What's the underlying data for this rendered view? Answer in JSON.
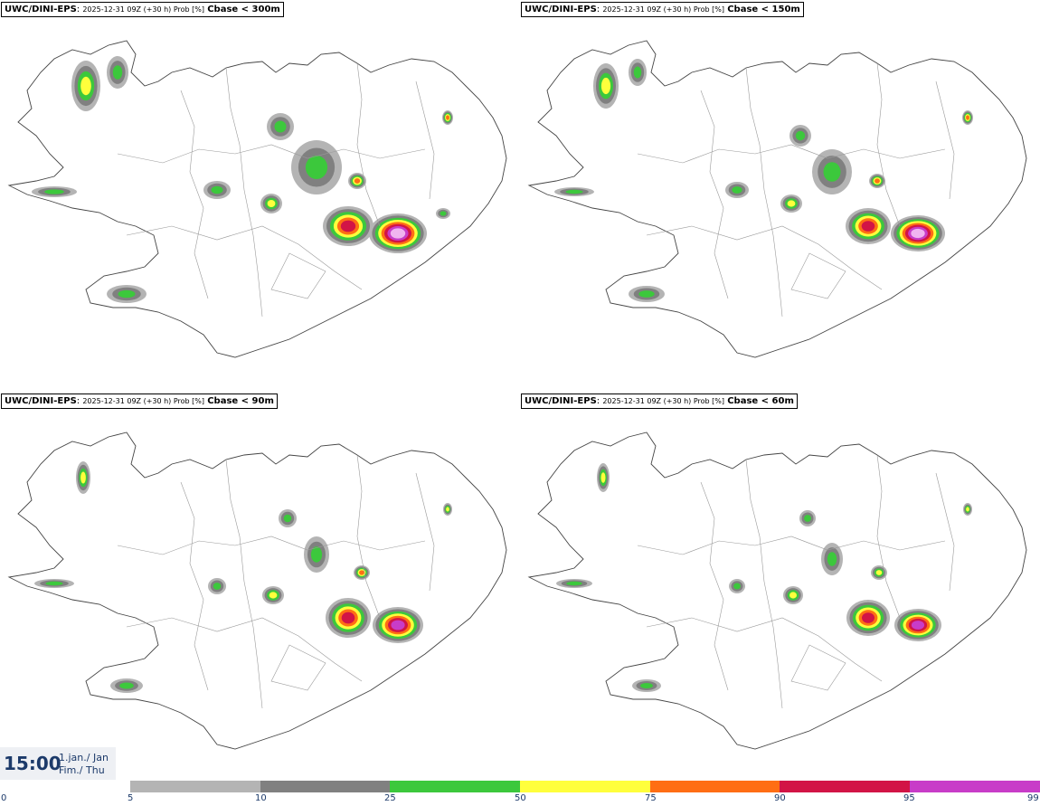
{
  "panels": [
    {
      "model": "UWC/DINI-EPS",
      "meta": "2025-12-31 09Z (+30 h) Prob [%]",
      "threshold": "Cbase < 300m"
    },
    {
      "model": "UWC/DINI-EPS",
      "meta": "2025-12-31 09Z (+30 h) Prob [%]",
      "threshold": "Cbase < 150m"
    },
    {
      "model": "UWC/DINI-EPS",
      "meta": "2025-12-31 09Z (+30 h) Prob [%]",
      "threshold": "Cbase < 90m"
    },
    {
      "model": "UWC/DINI-EPS",
      "meta": "2025-12-31 09Z (+30 h) Prob [%]",
      "threshold": "Cbase < 60m"
    }
  ],
  "valid_time": {
    "time": "15:00",
    "date_line1": "1.jan./ Jan",
    "date_line2": "Fim./ Thu"
  },
  "legend": {
    "ticks": [
      "0",
      "5",
      "10",
      "25",
      "50",
      "75",
      "90",
      "95",
      "99"
    ],
    "colors": [
      "#b4b4b4",
      "#808080",
      "#3cc83c",
      "#ffff3c",
      "#ff6e14",
      "#d21446",
      "#c83cc8",
      "#f0b4f0"
    ]
  },
  "colors": {
    "coast": "#444444",
    "text_accent": "#1c3a6a"
  }
}
